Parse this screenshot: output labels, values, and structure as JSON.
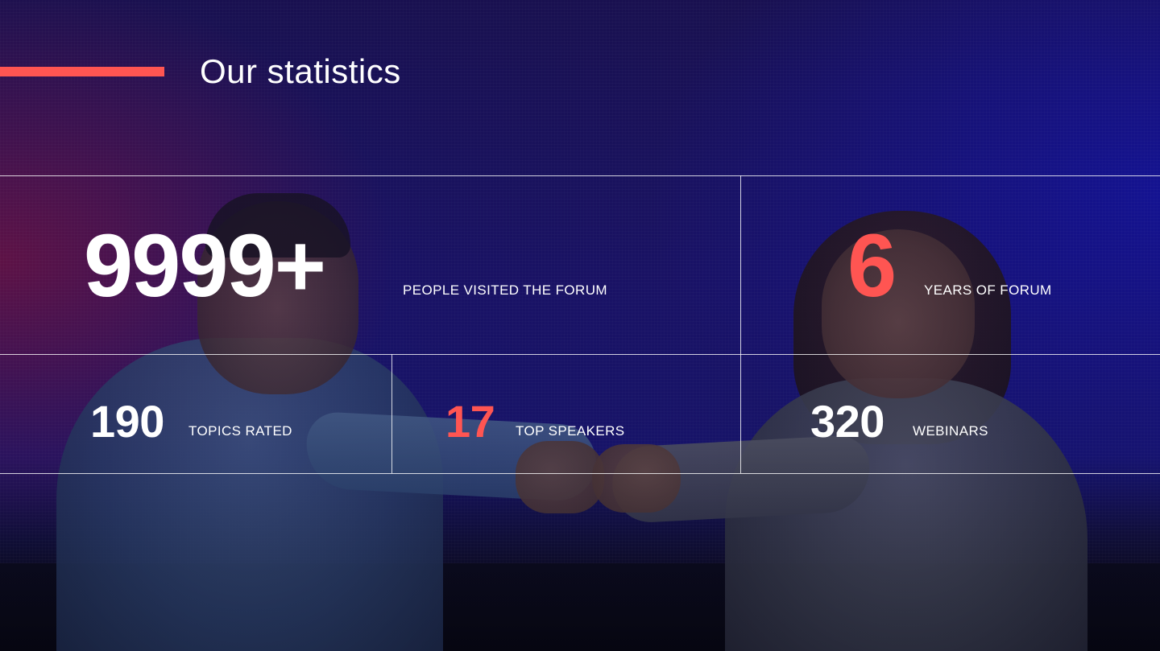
{
  "header": {
    "title": "Our statistics"
  },
  "colors": {
    "accent": "#ff5552",
    "text": "#ffffff",
    "background": "#1a1470"
  },
  "stats": [
    {
      "value": "9999+",
      "label": "PEOPLE VISITED THE FORUM",
      "highlight": false
    },
    {
      "value": "6",
      "label": "YEARS OF FORUM",
      "highlight": true
    },
    {
      "value": "190",
      "label": "TOPICS RATED",
      "highlight": false
    },
    {
      "value": "17",
      "label": "TOP SPEAKERS",
      "highlight": true
    },
    {
      "value": "320",
      "label": "WEBINARS",
      "highlight": false
    }
  ]
}
